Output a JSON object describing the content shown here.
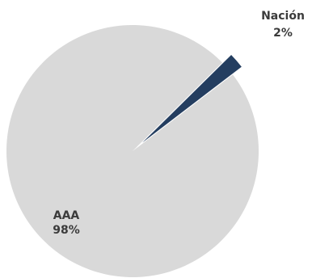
{
  "chart_data": {
    "type": "pie",
    "title": "",
    "slices": [
      {
        "label": "AAA",
        "value": 98,
        "value_label": "98%",
        "color": "#d9d9d9"
      },
      {
        "label": "Nación",
        "value": 2,
        "value_label": "2%",
        "color": "#243e60"
      }
    ],
    "legend": "none",
    "data_labels": "outside-or-inside, name and percent"
  }
}
